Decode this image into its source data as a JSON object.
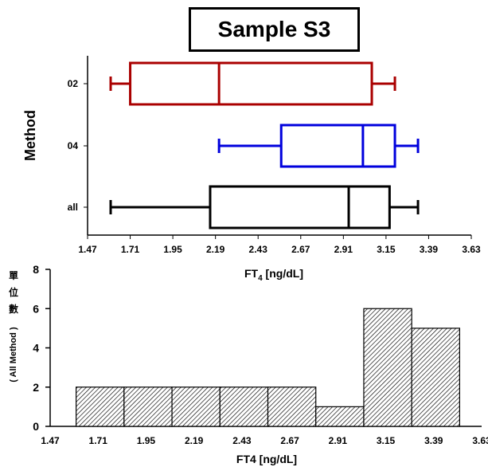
{
  "chart_data": [
    {
      "type": "boxplot",
      "title": "Sample S3",
      "ylabel": "Method",
      "xlabel_main": "FT",
      "xlabel_sub": "4",
      "xlabel_unit": " [ng/dL]",
      "xlim": [
        1.47,
        3.63
      ],
      "xticks": [
        "1.47",
        "1.71",
        "1.95",
        "2.19",
        "2.43",
        "2.67",
        "2.91",
        "3.15",
        "3.39",
        "3.63"
      ],
      "grid": false,
      "boxes": [
        {
          "label": "02",
          "color": "#aa0000",
          "min": 1.6,
          "q1": 1.71,
          "median": 2.21,
          "q3": 3.07,
          "max": 3.2
        },
        {
          "label": "04",
          "color": "#0000dd",
          "min": 2.21,
          "q1": 2.56,
          "median": 3.02,
          "q3": 3.2,
          "max": 3.33
        },
        {
          "label": "all",
          "color": "#000000",
          "min": 1.6,
          "q1": 2.16,
          "median": 2.94,
          "q3": 3.17,
          "max": 3.33
        }
      ]
    },
    {
      "type": "bar",
      "ylabel_cjk": [
        "單",
        "位",
        "數"
      ],
      "ylabel_sub": "( All Method )",
      "xlabel": "FT4 [ng/dL]",
      "xticks": [
        "1.47",
        "1.71",
        "1.95",
        "2.19",
        "2.43",
        "2.67",
        "2.91",
        "3.15",
        "3.39",
        "3.63"
      ],
      "xlim": [
        1.47,
        3.63
      ],
      "ylim": [
        0,
        8
      ],
      "yticks": [
        "0",
        "2",
        "4",
        "6",
        "8"
      ],
      "bin_width": 0.24,
      "bins": [
        {
          "x0": 1.6,
          "count": 2
        },
        {
          "x0": 1.84,
          "count": 2
        },
        {
          "x0": 2.08,
          "count": 2
        },
        {
          "x0": 2.32,
          "count": 2
        },
        {
          "x0": 2.56,
          "count": 2
        },
        {
          "x0": 2.8,
          "count": 1
        },
        {
          "x0": 3.04,
          "count": 6
        },
        {
          "x0": 3.28,
          "count": 5
        }
      ],
      "fill": "hatched"
    }
  ]
}
